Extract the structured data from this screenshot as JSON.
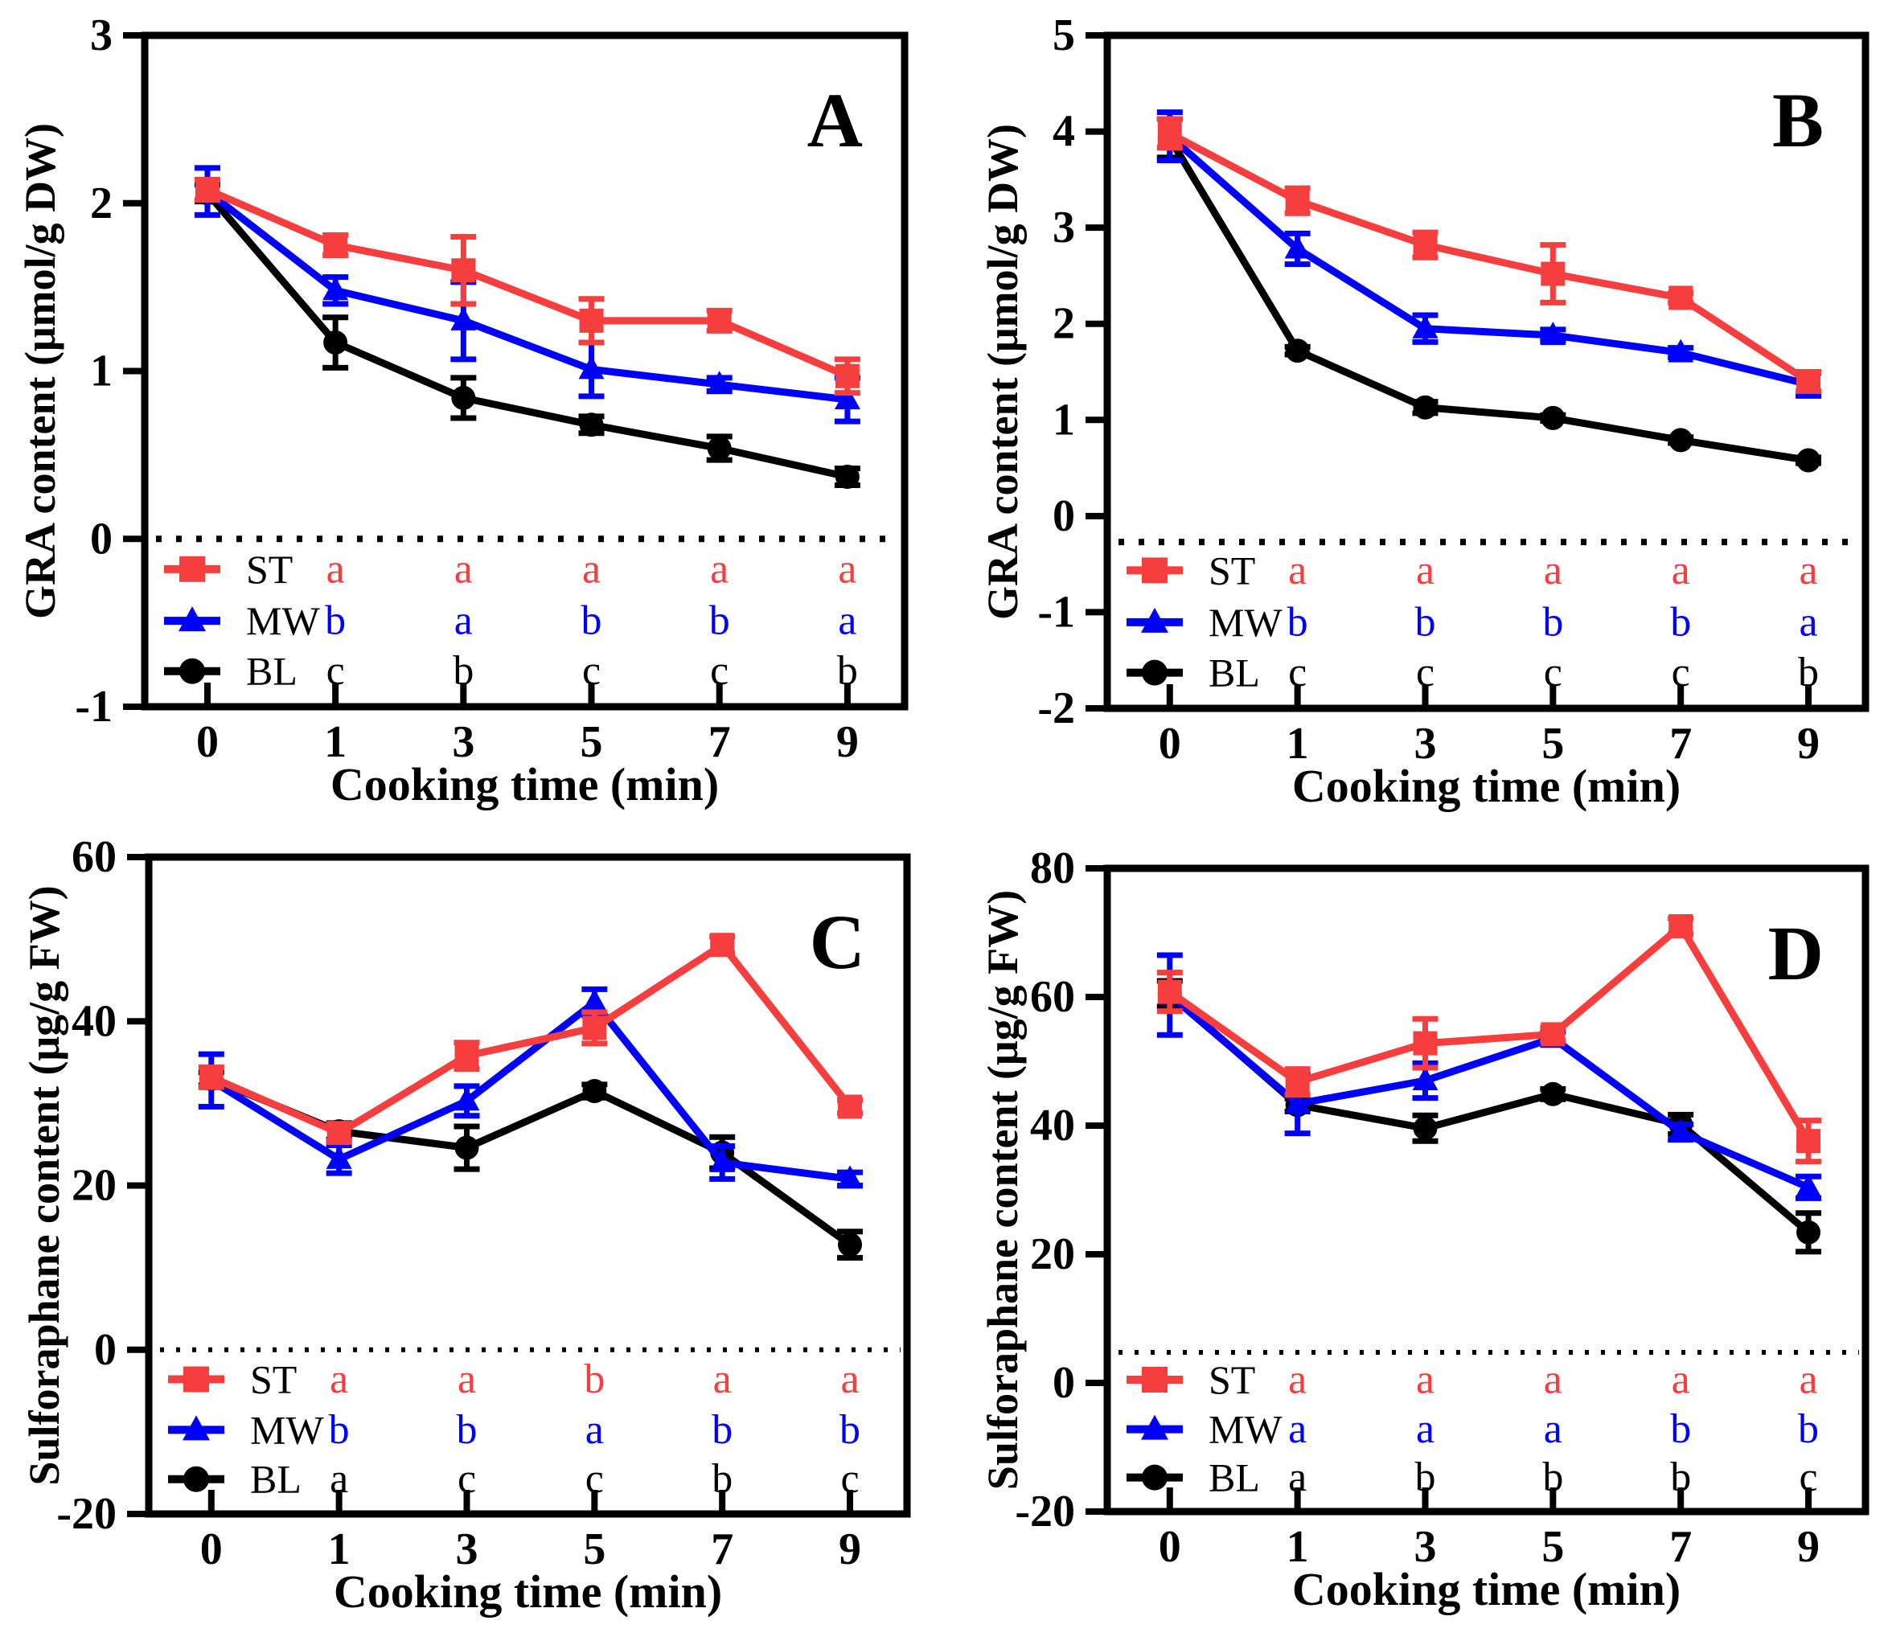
{
  "figure": {
    "background": "#ffffff",
    "x_axis_label": "Cooking time (min)",
    "legend_order": [
      "ST",
      "MW",
      "BL"
    ]
  },
  "chart_data": [
    {
      "type": "line",
      "panel_label": "A",
      "ylabel": "GRA content  (μmol/g DW)",
      "xlabel": "Cooking time (min)",
      "x_categories": [
        "0",
        "1",
        "3",
        "5",
        "7",
        "9"
      ],
      "ylim": [
        -1,
        3
      ],
      "yticks": [
        -1,
        0,
        1,
        2,
        3
      ],
      "dotted_line_y": 0,
      "legend_position": "bottom-left-inside",
      "grid": false,
      "series": [
        {
          "name": "ST",
          "marker": "square",
          "color": "#F73E3E",
          "values": [
            2.08,
            1.75,
            1.6,
            1.3,
            1.3,
            0.97
          ],
          "errors": [
            0.06,
            0.06,
            0.2,
            0.13,
            0.06,
            0.1
          ],
          "sig_letters": [
            "a",
            "a",
            "a",
            "a",
            "a"
          ]
        },
        {
          "name": "MW",
          "marker": "triangle",
          "color": "#0000FF",
          "values": [
            2.07,
            1.48,
            1.3,
            1.01,
            0.92,
            0.83
          ],
          "errors": [
            0.14,
            0.08,
            0.23,
            0.16,
            0.04,
            0.13
          ],
          "sig_letters": [
            "b",
            "a",
            "b",
            "b",
            "a"
          ]
        },
        {
          "name": "BL",
          "marker": "circle",
          "color": "#000000",
          "values": [
            2.06,
            1.17,
            0.84,
            0.68,
            0.54,
            0.37
          ],
          "errors": [
            0.05,
            0.15,
            0.12,
            0.05,
            0.07,
            0.05
          ],
          "sig_letters": [
            "c",
            "b",
            "c",
            "c",
            "b"
          ]
        }
      ]
    },
    {
      "type": "line",
      "panel_label": "B",
      "ylabel": "GRA content  (μmol/g DW)",
      "xlabel": "Cooking time (min)",
      "x_categories": [
        "0",
        "1",
        "3",
        "5",
        "7",
        "9"
      ],
      "ylim": [
        -2,
        5
      ],
      "yticks": [
        -2,
        -1,
        0,
        1,
        2,
        3,
        4,
        5
      ],
      "dotted_line_y": -0.27,
      "legend_position": "bottom-left-inside",
      "grid": false,
      "series": [
        {
          "name": "ST",
          "marker": "square",
          "color": "#F73E3E",
          "values": [
            3.98,
            3.28,
            2.82,
            2.52,
            2.27,
            1.4
          ],
          "errors": [
            0.15,
            0.13,
            0.13,
            0.3,
            0.05,
            0.1
          ],
          "sig_letters": [
            "a",
            "a",
            "a",
            "a",
            "a"
          ]
        },
        {
          "name": "MW",
          "marker": "triangle",
          "color": "#0000FF",
          "values": [
            3.95,
            2.78,
            1.95,
            1.88,
            1.7,
            1.37
          ],
          "errors": [
            0.25,
            0.16,
            0.14,
            0.06,
            0.05,
            0.12
          ],
          "sig_letters": [
            "b",
            "b",
            "b",
            "b",
            "a"
          ]
        },
        {
          "name": "BL",
          "marker": "circle",
          "color": "#000000",
          "values": [
            3.93,
            1.72,
            1.13,
            1.02,
            0.79,
            0.58
          ],
          "errors": [
            0.2,
            0.04,
            0.06,
            0.03,
            0.03,
            0.03
          ],
          "sig_letters": [
            "c",
            "c",
            "c",
            "c",
            "b"
          ]
        }
      ]
    },
    {
      "type": "line",
      "panel_label": "C",
      "ylabel": "Sulforaphane content  (μg/g FW)",
      "xlabel": "Cooking time (min)",
      "x_categories": [
        "0",
        "1",
        "3",
        "5",
        "7",
        "9"
      ],
      "ylim": [
        -20,
        60
      ],
      "yticks": [
        -20,
        0,
        20,
        40,
        60
      ],
      "dotted_line_y": 0,
      "legend_position": "bottom-left-inside",
      "grid": false,
      "series": [
        {
          "name": "ST",
          "marker": "square",
          "color": "#F73E3E",
          "values": [
            33.2,
            26.4,
            35.8,
            39.2,
            49.3,
            29.6
          ],
          "errors": [
            1.2,
            1.0,
            1.6,
            1.9,
            1.0,
            0.8
          ],
          "sig_letters": [
            "a",
            "a",
            "b",
            "a",
            "a"
          ]
        },
        {
          "name": "MW",
          "marker": "triangle",
          "color": "#0000FF",
          "values": [
            32.8,
            23.2,
            30.3,
            42.3,
            22.8,
            20.8
          ],
          "errors": [
            3.2,
            1.7,
            1.8,
            1.6,
            2.0,
            0.8
          ],
          "sig_letters": [
            "b",
            "b",
            "a",
            "b",
            "b"
          ]
        },
        {
          "name": "BL",
          "marker": "circle",
          "color": "#000000",
          "values": [
            33.0,
            26.6,
            24.6,
            31.5,
            24.0,
            12.8
          ],
          "errors": [
            0.8,
            1.0,
            2.6,
            0.8,
            1.9,
            1.6
          ],
          "sig_letters": [
            "a",
            "c",
            "c",
            "b",
            "c"
          ]
        }
      ]
    },
    {
      "type": "line",
      "panel_label": "D",
      "ylabel": "Sulforaphane content  (μg/g FW)",
      "xlabel": "Cooking time (min)",
      "x_categories": [
        "0",
        "1",
        "3",
        "5",
        "7",
        "9"
      ],
      "ylim": [
        -20,
        80
      ],
      "yticks": [
        -20,
        0,
        20,
        40,
        60,
        80
      ],
      "dotted_line_y": 4.75,
      "legend_position": "bottom-left-inside",
      "grid": false,
      "series": [
        {
          "name": "ST",
          "marker": "square",
          "color": "#F73E3E",
          "values": [
            60.8,
            46.8,
            52.8,
            54.2,
            71.0,
            37.6
          ],
          "errors": [
            3.0,
            2.0,
            3.8,
            1.0,
            1.2,
            3.2
          ],
          "sig_letters": [
            "a",
            "a",
            "a",
            "a",
            "a"
          ]
        },
        {
          "name": "MW",
          "marker": "triangle",
          "color": "#0000FF",
          "values": [
            60.3,
            43.4,
            47.0,
            53.6,
            39.0,
            30.4
          ],
          "errors": [
            6.2,
            4.6,
            2.7,
            1.0,
            1.2,
            1.7
          ],
          "sig_letters": [
            "a",
            "a",
            "a",
            "b",
            "b"
          ]
        },
        {
          "name": "BL",
          "marker": "circle",
          "color": "#000000",
          "values": [
            60.5,
            43.2,
            39.6,
            44.9,
            40.2,
            23.4
          ],
          "errors": [
            2.0,
            1.0,
            2.0,
            0.8,
            1.5,
            3.0
          ],
          "sig_letters": [
            "a",
            "b",
            "b",
            "b",
            "c"
          ]
        }
      ]
    }
  ]
}
